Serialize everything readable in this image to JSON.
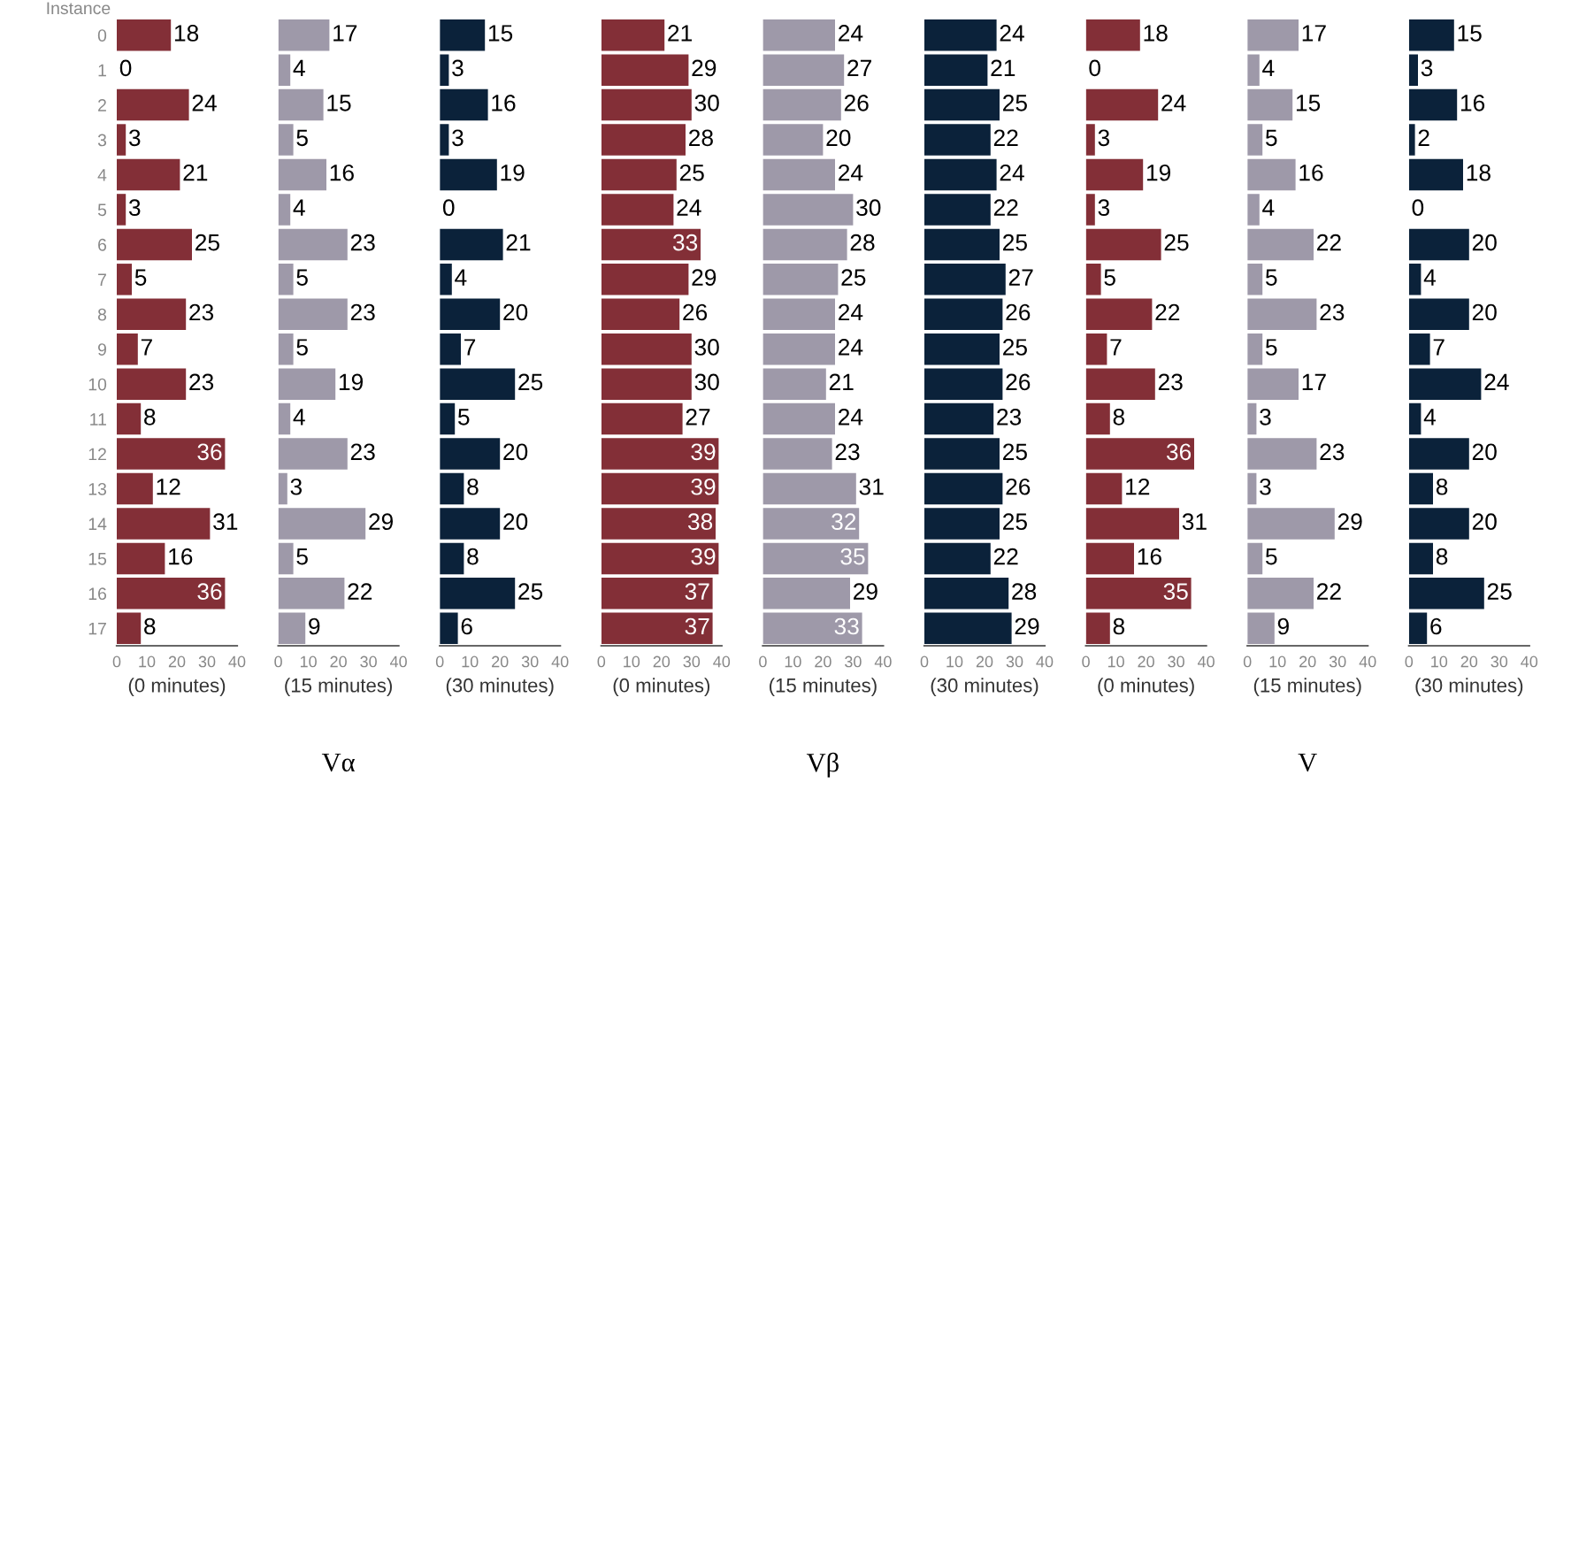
{
  "chart_data": [
    {
      "type": "bar",
      "orientation": "horizontal",
      "ylabel": "Instance",
      "xlabel": "(0 minutes)",
      "categories": [
        "0",
        "1",
        "2",
        "3",
        "4",
        "5",
        "6",
        "7",
        "8",
        "9",
        "10",
        "11",
        "12",
        "13",
        "14",
        "15",
        "16",
        "17"
      ],
      "series": [
        {
          "color": "#832f37",
          "values": [
            18,
            0,
            24,
            3,
            21,
            3,
            25,
            5,
            23,
            7,
            23,
            8,
            36,
            12,
            31,
            16,
            36,
            8
          ]
        }
      ],
      "xlim": [
        0,
        40
      ],
      "xticks": [
        0,
        10,
        20,
        30,
        40
      ],
      "data_labels": true,
      "grid": false
    },
    {
      "type": "bar",
      "orientation": "horizontal",
      "xlabel": "(15 minutes)",
      "annotations": [
        "Vα"
      ],
      "categories": [
        "0",
        "1",
        "2",
        "3",
        "4",
        "5",
        "6",
        "7",
        "8",
        "9",
        "10",
        "11",
        "12",
        "13",
        "14",
        "15",
        "16",
        "17"
      ],
      "series": [
        {
          "color": "#9e99a9",
          "values": [
            17,
            4,
            15,
            5,
            16,
            4,
            23,
            5,
            23,
            5,
            19,
            4,
            23,
            3,
            29,
            5,
            22,
            9
          ]
        }
      ],
      "xlim": [
        0,
        40
      ],
      "xticks": [
        0,
        10,
        20,
        30,
        40
      ],
      "tick_labels": "x",
      "data_labels": true,
      "grid": false
    },
    {
      "type": "bar",
      "orientation": "horizontal",
      "xlabel": "(30 minutes)",
      "categories": [
        "0",
        "1",
        "2",
        "3",
        "4",
        "5",
        "6",
        "7",
        "8",
        "9",
        "10",
        "11",
        "12",
        "13",
        "14",
        "15",
        "16",
        "17"
      ],
      "series": [
        {
          "color": "#0b223a",
          "values": [
            15,
            3,
            16,
            3,
            19,
            0,
            21,
            4,
            20,
            7,
            25,
            5,
            20,
            8,
            20,
            8,
            25,
            6
          ]
        }
      ],
      "xlim": [
        0,
        40
      ],
      "xticks": [
        0,
        10,
        20,
        30,
        40
      ],
      "tick_labels": "x",
      "data_labels": true,
      "grid": false
    },
    {
      "type": "bar",
      "orientation": "horizontal",
      "xlabel": "(0 minutes)",
      "categories": [
        "0",
        "1",
        "2",
        "3",
        "4",
        "5",
        "6",
        "7",
        "8",
        "9",
        "10",
        "11",
        "12",
        "13",
        "14",
        "15",
        "16",
        "17"
      ],
      "series": [
        {
          "color": "#832f37",
          "values": [
            21,
            29,
            30,
            28,
            25,
            24,
            33,
            29,
            26,
            30,
            30,
            27,
            39,
            39,
            38,
            39,
            37,
            37
          ]
        }
      ],
      "xlim": [
        0,
        40
      ],
      "xticks": [
        0,
        10,
        20,
        30,
        40
      ],
      "tick_labels": "x",
      "data_labels": true,
      "grid": false
    },
    {
      "type": "bar",
      "orientation": "horizontal",
      "xlabel": "(15 minutes)",
      "annotations": [
        "Vβ"
      ],
      "categories": [
        "0",
        "1",
        "2",
        "3",
        "4",
        "5",
        "6",
        "7",
        "8",
        "9",
        "10",
        "11",
        "12",
        "13",
        "14",
        "15",
        "16",
        "17"
      ],
      "series": [
        {
          "color": "#9e99a9",
          "values": [
            24,
            27,
            26,
            20,
            24,
            30,
            28,
            25,
            24,
            24,
            21,
            24,
            23,
            31,
            32,
            35,
            29,
            33
          ]
        }
      ],
      "xlim": [
        0,
        40
      ],
      "xticks": [
        0,
        10,
        20,
        30,
        40
      ],
      "tick_labels": "x",
      "data_labels": true,
      "grid": false
    },
    {
      "type": "bar",
      "orientation": "horizontal",
      "xlabel": "(30 minutes)",
      "categories": [
        "0",
        "1",
        "2",
        "3",
        "4",
        "5",
        "6",
        "7",
        "8",
        "9",
        "10",
        "11",
        "12",
        "13",
        "14",
        "15",
        "16",
        "17"
      ],
      "series": [
        {
          "color": "#0b223a",
          "values": [
            24,
            21,
            25,
            22,
            24,
            22,
            25,
            27,
            26,
            25,
            26,
            23,
            25,
            26,
            25,
            22,
            28,
            29
          ]
        }
      ],
      "xlim": [
        0,
        40
      ],
      "xticks": [
        0,
        10,
        20,
        30,
        40
      ],
      "tick_labels": "x",
      "data_labels": true,
      "grid": false
    },
    {
      "type": "bar",
      "orientation": "horizontal",
      "xlabel": "(0 minutes)",
      "categories": [
        "0",
        "1",
        "2",
        "3",
        "4",
        "5",
        "6",
        "7",
        "8",
        "9",
        "10",
        "11",
        "12",
        "13",
        "14",
        "15",
        "16",
        "17"
      ],
      "series": [
        {
          "color": "#832f37",
          "values": [
            18,
            0,
            24,
            3,
            19,
            3,
            25,
            5,
            22,
            7,
            23,
            8,
            36,
            12,
            31,
            16,
            35,
            8
          ]
        }
      ],
      "xlim": [
        0,
        40
      ],
      "xticks": [
        0,
        10,
        20,
        30,
        40
      ],
      "tick_labels": "x",
      "data_labels": true,
      "grid": false
    },
    {
      "type": "bar",
      "orientation": "horizontal",
      "xlabel": "(15 minutes)",
      "annotations": [
        "V"
      ],
      "categories": [
        "0",
        "1",
        "2",
        "3",
        "4",
        "5",
        "6",
        "7",
        "8",
        "9",
        "10",
        "11",
        "12",
        "13",
        "14",
        "15",
        "16",
        "17"
      ],
      "series": [
        {
          "color": "#9e99a9",
          "values": [
            17,
            4,
            15,
            5,
            16,
            4,
            22,
            5,
            23,
            5,
            17,
            3,
            23,
            3,
            29,
            5,
            22,
            9
          ]
        }
      ],
      "xlim": [
        0,
        40
      ],
      "xticks": [
        0,
        10,
        20,
        30,
        40
      ],
      "tick_labels": "x",
      "data_labels": true,
      "grid": false
    },
    {
      "type": "bar",
      "orientation": "horizontal",
      "xlabel": "(30 minutes)",
      "categories": [
        "0",
        "1",
        "2",
        "3",
        "4",
        "5",
        "6",
        "7",
        "8",
        "9",
        "10",
        "11",
        "12",
        "13",
        "14",
        "15",
        "16",
        "17"
      ],
      "series": [
        {
          "color": "#0b223a",
          "values": [
            15,
            3,
            16,
            2,
            18,
            0,
            20,
            4,
            20,
            7,
            24,
            4,
            20,
            8,
            20,
            8,
            25,
            6
          ]
        }
      ],
      "xlim": [
        0,
        40
      ],
      "xticks": [
        0,
        10,
        20,
        30,
        40
      ],
      "tick_labels": "x",
      "data_labels": true,
      "grid": false
    }
  ]
}
